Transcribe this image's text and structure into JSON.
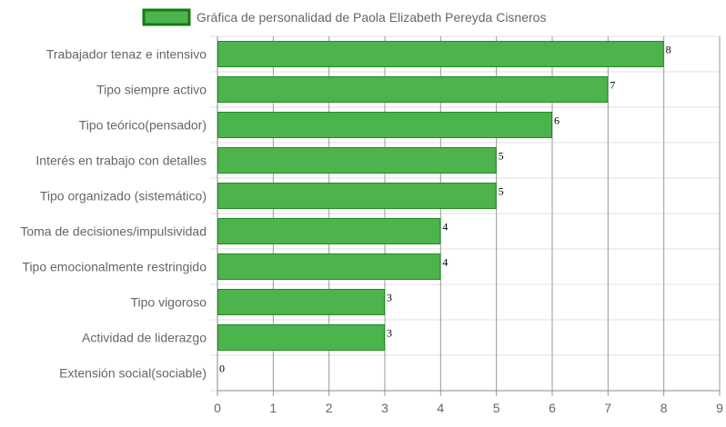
{
  "chart_data": {
    "type": "bar",
    "orientation": "horizontal",
    "title": "",
    "legend": {
      "position": "top",
      "items": [
        "Gráfica de personalidad de Paola Elizabeth Pereyda Cisneros"
      ]
    },
    "categories": [
      "Trabajador tenaz e intensivo",
      "Tipo siempre activo",
      "Tipo teórico(pensador)",
      "Interés en trabajo con detalles",
      "Tipo organizado (sistemático)",
      "Toma de decisiones/impulsividad",
      "Tipo emocionalmente restringido",
      "Tipo vigoroso",
      "Actividad de liderazgo",
      "Extensión social(sociable)"
    ],
    "series": [
      {
        "name": "Gráfica de personalidad de Paola Elizabeth Pereyda Cisneros",
        "values": [
          8,
          7,
          6,
          5,
          5,
          4,
          4,
          3,
          3,
          0
        ]
      }
    ],
    "xlim": [
      0,
      9
    ],
    "x_ticks": [
      "0",
      "1",
      "2",
      "3",
      "4",
      "5",
      "6",
      "7",
      "8",
      "9"
    ],
    "data_labels": true,
    "grid": true,
    "colors": {
      "bar_fill": "#4db34d",
      "bar_border": "#1e8c1e",
      "legend_fill": "#4db34d",
      "legend_border": "#137a13",
      "grid": "#e0e0e0",
      "axis": "#888888"
    }
  }
}
